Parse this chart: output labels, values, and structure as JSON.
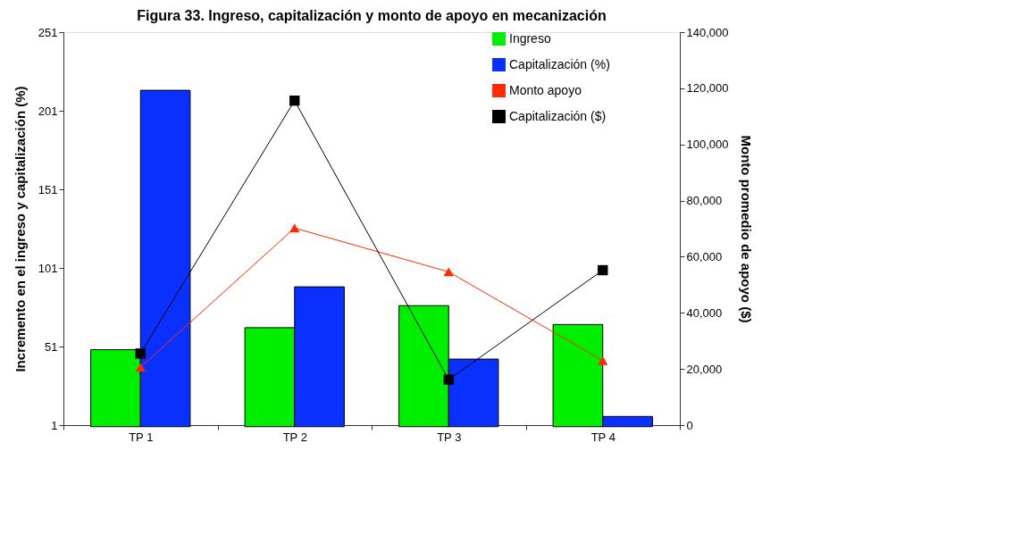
{
  "chart_data": {
    "type": "bar",
    "title": "Figura 33. Ingreso, capitalización y monto de apoyo en mecanización",
    "ylabel": "Incremento en el ingreso y capitalización (%)",
    "y2label": "Monto promedio de apoyo ($)",
    "categories": [
      "TP 1",
      "TP 2",
      "TP 3",
      "TP 4"
    ],
    "series": [
      {
        "name": "Ingreso",
        "color": "#00ee00",
        "values": [
          49,
          63,
          77,
          65
        ]
      },
      {
        "name": "Capitalización (%)",
        "color": "#0a30ff",
        "values": [
          214,
          89,
          43,
          6.5
        ]
      },
      {
        "name": "Monto apoyo",
        "color": "#ff2a00",
        "type": "line",
        "axis": "y2",
        "marker": "triangle",
        "values": [
          20600,
          70200,
          54600,
          23000
        ]
      },
      {
        "name": "Capitalización ($)",
        "color": "#000000",
        "type": "line",
        "axis": "y2",
        "marker": "square",
        "values": [
          25500,
          115600,
          16200,
          55200
        ]
      }
    ],
    "ylim": [
      1,
      251
    ],
    "yticks": [
      1,
      51,
      101,
      151,
      201,
      251
    ],
    "y2lim": [
      0,
      140000
    ],
    "y2ticks": [
      {
        "value": 0,
        "label": "0"
      },
      {
        "value": 20000,
        "label": "20,000"
      },
      {
        "value": 40000,
        "label": "40,000"
      },
      {
        "value": 60000,
        "label": "60,000"
      },
      {
        "value": 80000,
        "label": "80,000"
      },
      {
        "value": 100000,
        "label": "100,000"
      },
      {
        "value": 120000,
        "label": "120,000"
      },
      {
        "value": 140000,
        "label": "140,000"
      }
    ],
    "grid": false,
    "legend": "top right"
  }
}
